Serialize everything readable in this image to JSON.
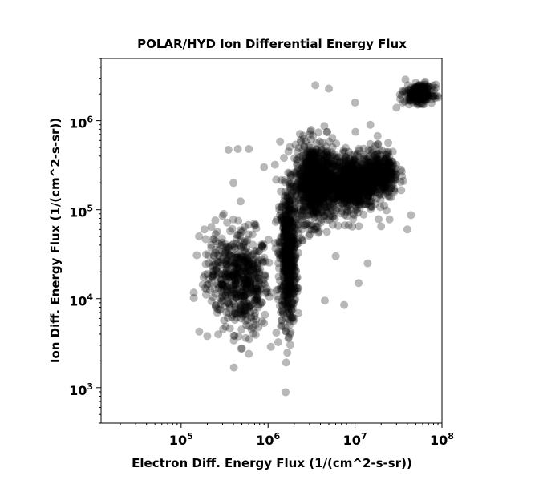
{
  "chart_data": {
    "type": "scatter",
    "title": "POLAR/HYD  Ion Differential Energy Flux",
    "xlabel": "Electron Diff. Energy Flux (1/(cm^2-s-sr))",
    "ylabel": "Ion Diff. Energy Flux (1/(cm^2-s-sr))",
    "x_scale": "log",
    "y_scale": "log",
    "xlim": [
      12000,
      100000000
    ],
    "ylim": [
      400,
      5000000
    ],
    "x_ticks": [
      {
        "base": "10",
        "exp": "5",
        "value": 100000
      },
      {
        "base": "10",
        "exp": "6",
        "value": 1000000
      },
      {
        "base": "10",
        "exp": "7",
        "value": 10000000
      },
      {
        "base": "10",
        "exp": "8",
        "value": 100000000
      }
    ],
    "y_ticks": [
      {
        "base": "10",
        "exp": "3",
        "value": 1000
      },
      {
        "base": "10",
        "exp": "4",
        "value": 10000
      },
      {
        "base": "10",
        "exp": "5",
        "value": 100000
      },
      {
        "base": "10",
        "exp": "6",
        "value": 1000000
      }
    ],
    "grid": false,
    "marker_color": "#000000",
    "marker_opacity": 0.28,
    "clusters": [
      {
        "x_center": 550000,
        "y_center": 15000,
        "x_spread_dex": 0.13,
        "y_spread_dex": 0.28,
        "count": 420
      },
      {
        "x_center": 1700000,
        "y_center": 30000,
        "x_spread_dex": 0.05,
        "y_spread_dex": 0.38,
        "count": 600
      },
      {
        "x_center": 3500000,
        "y_center": 200000,
        "x_spread_dex": 0.12,
        "y_spread_dex": 0.22,
        "count": 900
      },
      {
        "x_center": 9000000,
        "y_center": 200000,
        "x_spread_dex": 0.14,
        "y_spread_dex": 0.16,
        "count": 700
      },
      {
        "x_center": 20000000,
        "y_center": 250000,
        "x_spread_dex": 0.1,
        "y_spread_dex": 0.13,
        "count": 350
      },
      {
        "x_center": 55000000,
        "y_center": 2000000,
        "x_spread_dex": 0.08,
        "y_spread_dex": 0.05,
        "count": 250
      },
      {
        "x_center": 300000,
        "y_center": 20000,
        "x_spread_dex": 0.12,
        "y_spread_dex": 0.25,
        "count": 180
      }
    ],
    "points": [
      {
        "x": 200000,
        "y": 3800
      },
      {
        "x": 600000,
        "y": 2400
      },
      {
        "x": 3500000,
        "y": 2500000
      },
      {
        "x": 5000000,
        "y": 2300000
      },
      {
        "x": 10000000,
        "y": 1600000
      },
      {
        "x": 38000000,
        "y": 2900000
      },
      {
        "x": 15000000,
        "y": 900000
      },
      {
        "x": 30000000,
        "y": 1400000
      },
      {
        "x": 450000,
        "y": 480000
      },
      {
        "x": 600000,
        "y": 480000
      },
      {
        "x": 350000,
        "y": 470000
      },
      {
        "x": 900000,
        "y": 300000
      },
      {
        "x": 1200000,
        "y": 320000
      },
      {
        "x": 400000,
        "y": 200000
      },
      {
        "x": 300000,
        "y": 85000
      },
      {
        "x": 700000,
        "y": 70000
      },
      {
        "x": 4500000,
        "y": 9500
      },
      {
        "x": 7500000,
        "y": 8500
      },
      {
        "x": 11000000,
        "y": 15000
      },
      {
        "x": 44000000,
        "y": 87000
      },
      {
        "x": 40000000,
        "y": 60000
      },
      {
        "x": 25000000,
        "y": 78000
      },
      {
        "x": 1800000,
        "y": 4000
      },
      {
        "x": 1600000,
        "y": 6000
      },
      {
        "x": 14000000,
        "y": 25000
      },
      {
        "x": 20000000,
        "y": 65000
      },
      {
        "x": 850000,
        "y": 9000
      },
      {
        "x": 250000,
        "y": 8000
      },
      {
        "x": 6000000,
        "y": 30000
      },
      {
        "x": 2500000,
        "y": 45000
      }
    ]
  }
}
